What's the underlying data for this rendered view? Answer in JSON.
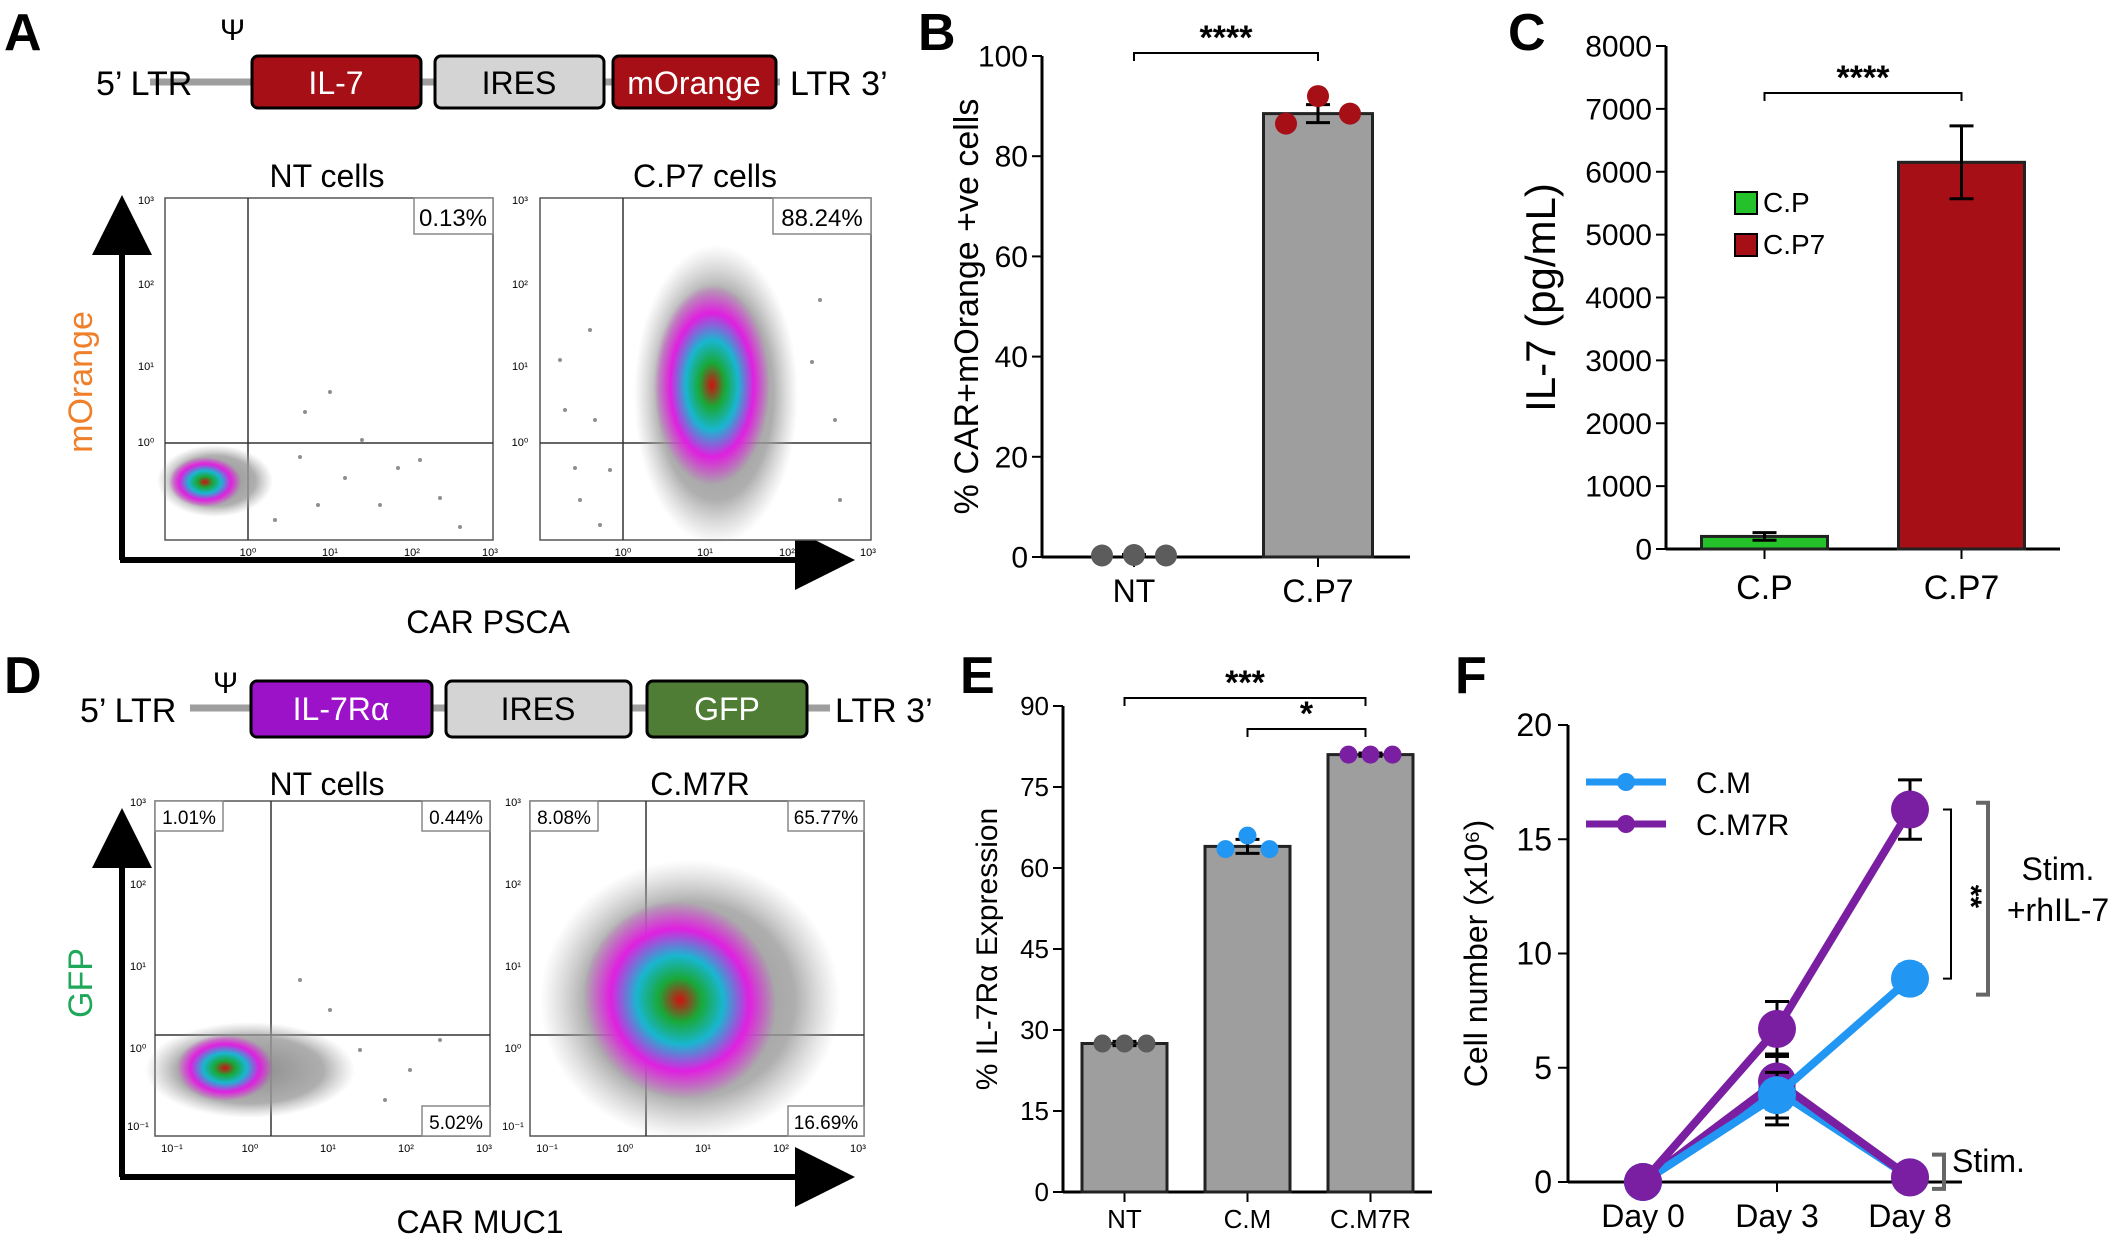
{
  "panels": {
    "a": "A",
    "b": "B",
    "c": "C",
    "d": "D",
    "e": "E",
    "f": "F"
  },
  "construct_a": {
    "ltr5": "5’ LTR",
    "psi": "Ψ",
    "gene": "IL-7",
    "ires": "IRES",
    "reporter": "mOrange",
    "ltr3": "LTR 3’",
    "colors": {
      "gene": "#a50f15",
      "ires": "#d4d4d4",
      "reporter": "#a50f15"
    }
  },
  "flow_a": {
    "xlabel": "CAR PSCA",
    "ylabel": "mOrange",
    "ylabel_color": "#f07f2a",
    "ticks": [
      "10⁰",
      "10¹",
      "10²",
      "10³"
    ],
    "left": {
      "title": "NT cells",
      "pct": "0.13%"
    },
    "right": {
      "title": "C.P7 cells",
      "pct": "88.24%"
    }
  },
  "construct_d": {
    "ltr5": "5’ LTR",
    "psi": "Ψ",
    "gene": "IL-7Rα",
    "ires": "IRES",
    "reporter": "GFP",
    "ltr3": "LTR 3’",
    "colors": {
      "gene": "#9b12c8",
      "ires": "#d4d4d4",
      "reporter": "#4f7d35"
    }
  },
  "flow_d": {
    "xlabel": "CAR MUC1",
    "ylabel": "GFP",
    "ylabel_color": "#1fa75a",
    "ticks": [
      "10⁻¹",
      "10⁰",
      "10¹",
      "10²",
      "10³"
    ],
    "left": {
      "title": "NT cells",
      "q_ul": "1.01%",
      "q_ur": "0.44%",
      "q_lr": "5.02%"
    },
    "right": {
      "title": "C.M7R",
      "q_ul": "8.08%",
      "q_ur": "65.77%",
      "q_lr": "16.69%"
    }
  },
  "chart_data": [
    {
      "id": "B",
      "type": "bar",
      "title": "",
      "xlabel": "",
      "ylabel": "% CAR+mOrange +ve cells",
      "categories": [
        "NT",
        "C.P7"
      ],
      "values": [
        0.3,
        88.5
      ],
      "errors": [
        0.2,
        1.8
      ],
      "points": [
        [
          0.3,
          0.4,
          0.3
        ],
        [
          86.5,
          92.0,
          88.5
        ]
      ],
      "point_colors": [
        "#5c5c5c",
        "#a50f15"
      ],
      "bar_colors": [
        "#9e9e9e",
        "#9e9e9e"
      ],
      "ylim": [
        0,
        100
      ],
      "yticks": [
        0,
        20,
        40,
        60,
        80,
        100
      ],
      "significance": [
        {
          "from": 0,
          "to": 1,
          "label": "****"
        }
      ]
    },
    {
      "id": "C",
      "type": "bar",
      "title": "",
      "xlabel": "",
      "ylabel": "IL-7 (pg/mL)",
      "categories": [
        "C.P",
        "C.P7"
      ],
      "values": [
        200,
        6150
      ],
      "errors": [
        60,
        580
      ],
      "bar_colors": [
        "#25c12b",
        "#a50f15"
      ],
      "ylim": [
        0,
        8000
      ],
      "yticks": [
        0,
        1000,
        2000,
        3000,
        4000,
        5000,
        6000,
        7000,
        8000
      ],
      "legend": [
        {
          "name": "C.P",
          "color": "#25c12b"
        },
        {
          "name": "C.P7",
          "color": "#a50f15"
        }
      ],
      "significance": [
        {
          "from": 0,
          "to": 1,
          "label": "****"
        }
      ]
    },
    {
      "id": "E",
      "type": "bar",
      "title": "",
      "xlabel": "",
      "ylabel": "% IL-7Rα Expression",
      "categories": [
        "NT",
        "C.M",
        "C.M7R"
      ],
      "values": [
        27.5,
        64.0,
        81.0
      ],
      "errors": [
        0.4,
        1.3,
        0.3
      ],
      "points": [
        [
          27.5,
          27.5,
          27.5
        ],
        [
          63.5,
          66.0,
          63.5
        ],
        [
          81.0,
          81.0,
          81.0
        ]
      ],
      "point_colors": [
        "#5c5c5c",
        "#2196f3",
        "#7b1fa2"
      ],
      "bar_colors": [
        "#9e9e9e",
        "#9e9e9e",
        "#9e9e9e"
      ],
      "ylim": [
        0,
        90
      ],
      "yticks": [
        0,
        15,
        30,
        45,
        60,
        75,
        90
      ],
      "significance": [
        {
          "from": 0,
          "to": 2,
          "label": "***"
        },
        {
          "from": 1,
          "to": 2,
          "label": "*"
        }
      ]
    },
    {
      "id": "F",
      "type": "line",
      "title": "",
      "xlabel": "",
      "ylabel": "Cell number (x10⁶)",
      "x": [
        "Day 0",
        "Day 3",
        "Day 8"
      ],
      "ylim": [
        0,
        20
      ],
      "yticks": [
        0,
        5,
        10,
        15,
        20
      ],
      "series": [
        {
          "name": "C.M",
          "condition": "Stim. +rhIL-7",
          "color": "#2196f3",
          "values": [
            0,
            3.8,
            8.9
          ],
          "errors": [
            0,
            1.0,
            0.6
          ]
        },
        {
          "name": "C.M7R",
          "condition": "Stim. +rhIL-7",
          "color": "#7b1fa2",
          "values": [
            0,
            6.7,
            16.3
          ],
          "errors": [
            0,
            1.2,
            1.3
          ]
        },
        {
          "name": "C.M",
          "condition": "Stim.",
          "color": "#2196f3",
          "values": [
            0,
            4.0,
            0.2
          ],
          "errors": [
            0,
            1.5,
            0.1
          ]
        },
        {
          "name": "C.M7R",
          "condition": "Stim.",
          "color": "#7b1fa2",
          "values": [
            0,
            4.4,
            0.2
          ],
          "errors": [
            0,
            1.2,
            0.1
          ]
        }
      ],
      "legend": [
        "C.M",
        "C.M7R"
      ],
      "annotations": {
        "sig": "**",
        "stim_il7": [
          "Stim.",
          "+rhIL-7"
        ],
        "stim": "Stim."
      }
    }
  ]
}
